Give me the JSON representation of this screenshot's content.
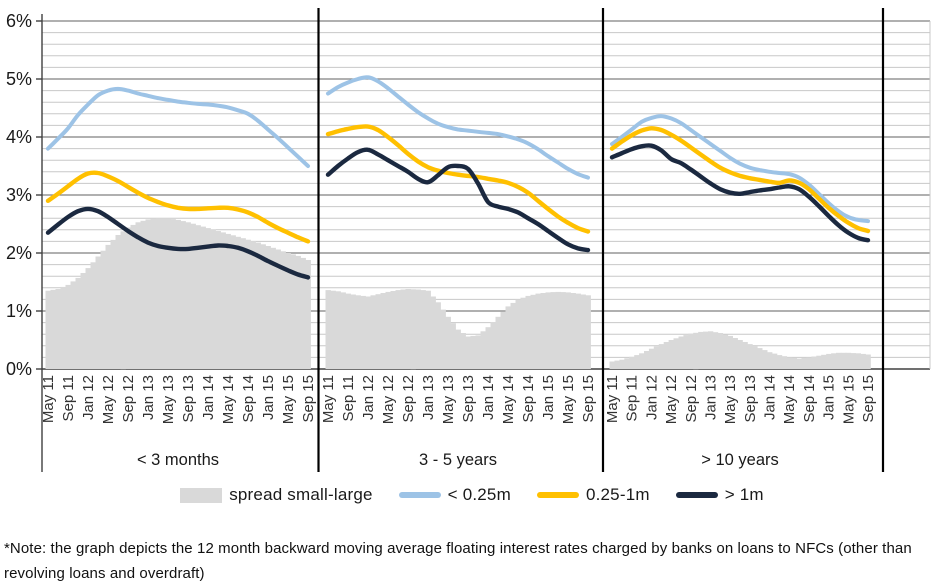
{
  "chart_data": {
    "type": "line",
    "description": "12 month backward moving average floating interest rates charged by banks on loans to NFCs, by loan size, for three maturity buckets",
    "y_axis": {
      "unit": "%",
      "min": 0,
      "max": 6,
      "major_step": 1,
      "minor_step": 0.2,
      "tick_labels": [
        "0%",
        "1%",
        "2%",
        "3%",
        "4%",
        "5%",
        "6%"
      ]
    },
    "x": [
      "May 11",
      "Jul 11",
      "Sep 11",
      "Nov 11",
      "Jan 12",
      "Mar 12",
      "May 12",
      "Jul 12",
      "Sep 12",
      "Nov 12",
      "Jan 13",
      "Mar 13",
      "May 13",
      "Jul 13",
      "Sep 13",
      "Nov 13",
      "Jan 14",
      "Mar 14",
      "May 14",
      "Jul 14",
      "Sep 14",
      "Nov 14",
      "Jan 15",
      "Mar 15",
      "May 15",
      "Jul 15",
      "Sep 15"
    ],
    "x_shown_tick_labels": [
      "May 11",
      "Sep 11",
      "Jan 12",
      "May 12",
      "Sep 12",
      "Jan 13",
      "May 13",
      "Sep 13",
      "Jan 14",
      "May 14",
      "Sep 14",
      "Jan 15",
      "May 15",
      "Sep 15"
    ],
    "grid": "minor horizontal lines every 0.2, major every 1",
    "legend_position": "bottom",
    "panels": [
      {
        "label": "< 3 months",
        "series": [
          {
            "name": "spread small-large",
            "type": "area",
            "values": [
              1.35,
              1.38,
              1.45,
              1.57,
              1.74,
              1.94,
              2.14,
              2.31,
              2.44,
              2.53,
              2.58,
              2.6,
              2.6,
              2.57,
              2.53,
              2.48,
              2.43,
              2.38,
              2.33,
              2.28,
              2.23,
              2.18,
              2.12,
              2.06,
              2.0,
              1.95,
              1.88
            ]
          },
          {
            "name": "< 0.25m",
            "type": "line",
            "values": [
              3.8,
              3.97,
              4.15,
              4.38,
              4.56,
              4.72,
              4.8,
              4.83,
              4.8,
              4.75,
              4.71,
              4.67,
              4.64,
              4.61,
              4.59,
              4.57,
              4.56,
              4.54,
              4.51,
              4.46,
              4.4,
              4.28,
              4.13,
              3.98,
              3.82,
              3.66,
              3.5
            ]
          },
          {
            "name": "0.25-1m",
            "type": "line",
            "values": [
              2.9,
              3.02,
              3.15,
              3.28,
              3.37,
              3.38,
              3.32,
              3.24,
              3.14,
              3.04,
              2.95,
              2.88,
              2.82,
              2.78,
              2.76,
              2.76,
              2.77,
              2.78,
              2.78,
              2.75,
              2.7,
              2.62,
              2.52,
              2.43,
              2.35,
              2.27,
              2.2
            ]
          },
          {
            "name": "> 1m",
            "type": "line",
            "values": [
              2.35,
              2.49,
              2.62,
              2.72,
              2.76,
              2.72,
              2.62,
              2.5,
              2.38,
              2.27,
              2.18,
              2.12,
              2.09,
              2.07,
              2.07,
              2.09,
              2.11,
              2.13,
              2.12,
              2.09,
              2.03,
              1.95,
              1.86,
              1.78,
              1.7,
              1.63,
              1.58
            ]
          }
        ]
      },
      {
        "label": "3 - 5 years",
        "series": [
          {
            "name": "spread small-large",
            "type": "area",
            "values": [
              1.36,
              1.34,
              1.3,
              1.27,
              1.25,
              1.29,
              1.33,
              1.36,
              1.38,
              1.37,
              1.35,
              1.15,
              0.9,
              0.68,
              0.56,
              0.58,
              0.72,
              0.9,
              1.08,
              1.2,
              1.26,
              1.3,
              1.32,
              1.33,
              1.32,
              1.3,
              1.27
            ]
          },
          {
            "name": "< 0.25m",
            "type": "line",
            "values": [
              4.75,
              4.86,
              4.94,
              5.0,
              5.03,
              4.96,
              4.84,
              4.7,
              4.56,
              4.43,
              4.32,
              4.23,
              4.17,
              4.13,
              4.11,
              4.09,
              4.07,
              4.05,
              4.01,
              3.96,
              3.89,
              3.79,
              3.67,
              3.56,
              3.45,
              3.36,
              3.3
            ]
          },
          {
            "name": "0.25-1m",
            "type": "line",
            "values": [
              4.05,
              4.1,
              4.14,
              4.17,
              4.18,
              4.12,
              4.0,
              3.86,
              3.71,
              3.58,
              3.48,
              3.42,
              3.38,
              3.35,
              3.33,
              3.31,
              3.28,
              3.25,
              3.21,
              3.14,
              3.04,
              2.9,
              2.76,
              2.63,
              2.52,
              2.43,
              2.37
            ]
          },
          {
            "name": "> 1m",
            "type": "line",
            "values": [
              3.35,
              3.5,
              3.63,
              3.74,
              3.78,
              3.7,
              3.6,
              3.5,
              3.4,
              3.28,
              3.22,
              3.34,
              3.48,
              3.5,
              3.45,
              3.2,
              2.88,
              2.8,
              2.76,
              2.7,
              2.6,
              2.5,
              2.38,
              2.26,
              2.15,
              2.08,
              2.05
            ]
          }
        ]
      },
      {
        "label": "> 10 years",
        "series": [
          {
            "name": "spread small-large",
            "type": "area",
            "values": [
              0.13,
              0.16,
              0.21,
              0.27,
              0.35,
              0.43,
              0.5,
              0.56,
              0.61,
              0.64,
              0.65,
              0.62,
              0.57,
              0.5,
              0.43,
              0.36,
              0.29,
              0.24,
              0.2,
              0.18,
              0.2,
              0.23,
              0.26,
              0.28,
              0.28,
              0.27,
              0.25
            ]
          },
          {
            "name": "< 0.25m",
            "type": "line",
            "values": [
              3.88,
              4.0,
              4.13,
              4.26,
              4.33,
              4.36,
              4.32,
              4.24,
              4.12,
              4.0,
              3.88,
              3.76,
              3.64,
              3.54,
              3.47,
              3.43,
              3.4,
              3.38,
              3.36,
              3.3,
              3.18,
              3.02,
              2.86,
              2.72,
              2.62,
              2.57,
              2.55
            ]
          },
          {
            "name": "0.25-1m",
            "type": "line",
            "values": [
              3.8,
              3.92,
              4.03,
              4.11,
              4.15,
              4.12,
              4.04,
              3.94,
              3.82,
              3.7,
              3.58,
              3.47,
              3.39,
              3.33,
              3.29,
              3.26,
              3.23,
              3.21,
              3.25,
              3.21,
              3.1,
              2.94,
              2.78,
              2.64,
              2.52,
              2.43,
              2.38
            ]
          },
          {
            "name": "> 1m",
            "type": "line",
            "values": [
              3.65,
              3.72,
              3.79,
              3.84,
              3.85,
              3.77,
              3.62,
              3.55,
              3.44,
              3.32,
              3.2,
              3.1,
              3.04,
              3.02,
              3.05,
              3.08,
              3.1,
              3.13,
              3.15,
              3.1,
              2.97,
              2.81,
              2.64,
              2.48,
              2.35,
              2.26,
              2.22
            ]
          }
        ]
      }
    ],
    "legend": [
      {
        "label": "spread small-large",
        "swatch": "area",
        "color": "#D9D9D9"
      },
      {
        "label": "< 0.25m",
        "swatch": "line",
        "color": "#9DC3E6"
      },
      {
        "label": "0.25-1m",
        "swatch": "line",
        "color": "#FFC000"
      },
      {
        "label": "> 1m",
        "swatch": "line",
        "color": "#1B2940"
      }
    ],
    "colors": {
      "area": "#D9D9D9",
      "line_small": "#9DC3E6",
      "line_mid": "#FFC000",
      "line_large": "#1B2940",
      "grid_minor": "#C8C8C8",
      "grid_major": "#808080",
      "axis": "#404040",
      "separator": "#000000",
      "text": "#1A1A1A"
    }
  },
  "note": {
    "lines": [
      "*Note: the graph depicts the 12 month backward moving average floating interest rates charged by banks on loans to NFCs (other than",
      "revolving loans and overdraft)"
    ]
  }
}
